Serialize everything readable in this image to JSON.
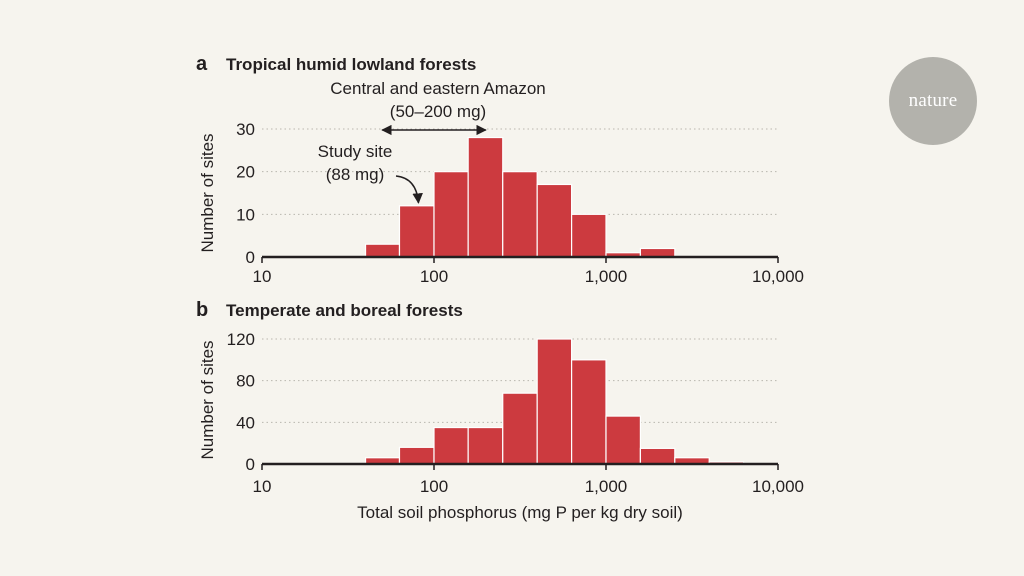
{
  "logo": {
    "text": "nature"
  },
  "colors": {
    "bar": "#cc3a3f",
    "bar_edge": "#ffffff",
    "axis": "#231f20",
    "grid": "#b9b6ae"
  },
  "x_axis_label": "Total soil phosphorus (mg P per kg dry soil)",
  "chart_data": [
    {
      "type": "bar",
      "panel": "a",
      "title": "Tropical humid lowland forests",
      "ylabel": "Number of sites",
      "xscale": "log",
      "xlim": [
        10,
        10000
      ],
      "xticks": [
        10,
        100,
        1000,
        10000
      ],
      "xtick_labels": [
        "10",
        "100",
        "1,000",
        "10,000"
      ],
      "ylim": [
        0,
        30
      ],
      "yticks": [
        0,
        10,
        20,
        30
      ],
      "grid": "horizontal dotted",
      "bin_edges": [
        40,
        63,
        100,
        158,
        251,
        398,
        631,
        1000,
        1585,
        2512
      ],
      "values": [
        3,
        12,
        20,
        28,
        20,
        17,
        10,
        1,
        2
      ],
      "annotations": {
        "range_label_1": "Central and eastern Amazon",
        "range_label_2": "(50–200 mg)",
        "range": [
          50,
          200
        ],
        "site_label_1": "Study site",
        "site_label_2": "(88 mg)",
        "site_value": 88
      }
    },
    {
      "type": "bar",
      "panel": "b",
      "title": "Temperate and boreal forests",
      "ylabel": "Number of sites",
      "xscale": "log",
      "xlim": [
        10,
        10000
      ],
      "xticks": [
        10,
        100,
        1000,
        10000
      ],
      "xtick_labels": [
        "10",
        "100",
        "1,000",
        "10,000"
      ],
      "ylim": [
        0,
        120
      ],
      "yticks": [
        0,
        40,
        80,
        120
      ],
      "grid": "horizontal dotted",
      "bin_edges": [
        40,
        63,
        100,
        158,
        251,
        398,
        631,
        1000,
        1585,
        2512,
        3981,
        6310
      ],
      "values": [
        6,
        16,
        35,
        35,
        68,
        120,
        100,
        46,
        15,
        6,
        2
      ]
    }
  ]
}
